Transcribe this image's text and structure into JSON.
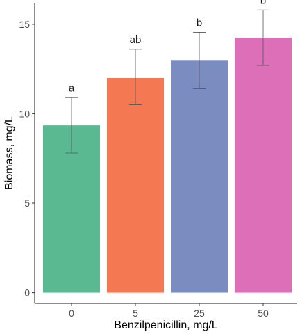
{
  "chart_data": {
    "type": "bar",
    "title": "",
    "xlabel": "Benzilpenicillin, mg/L",
    "ylabel": "Biomass, mg/L",
    "categories": [
      "0",
      "5",
      "25",
      "50"
    ],
    "values": [
      9.35,
      12.0,
      13.0,
      14.25
    ],
    "error_low": [
      7.8,
      10.5,
      11.4,
      12.7
    ],
    "error_high": [
      10.9,
      13.6,
      14.55,
      15.8
    ],
    "significance_labels": [
      "a",
      "ab",
      "b",
      "b"
    ],
    "colors": [
      "#5ab991",
      "#f47852",
      "#7b8cc0",
      "#dc6fb8"
    ],
    "ylim": [
      -0.6,
      16.2
    ],
    "yticks": [
      0,
      5,
      10,
      15
    ],
    "ytick_labels": [
      "0",
      "5",
      "10",
      "15"
    ],
    "grid": false,
    "legend": "none"
  }
}
